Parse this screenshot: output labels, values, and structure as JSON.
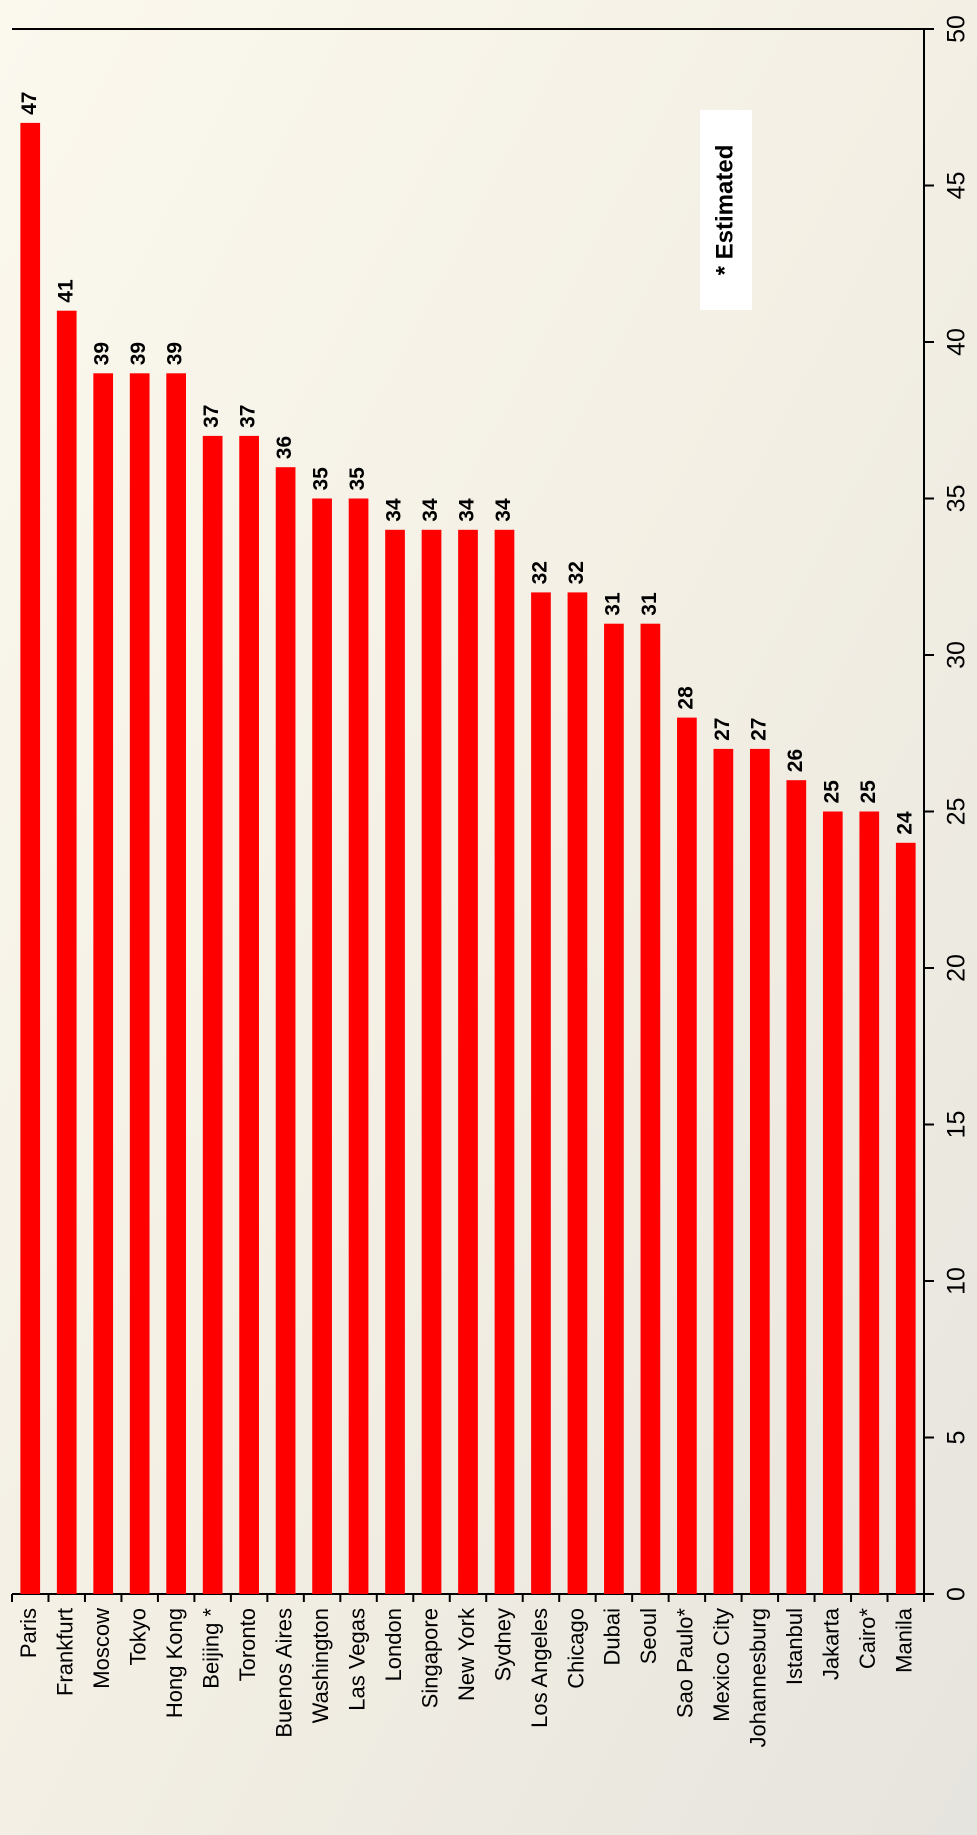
{
  "chart_data": {
    "type": "bar",
    "orientation": "rotated",
    "categories": [
      "Paris",
      "Frankfurt",
      "Moscow",
      "Tokyo",
      "Hong Kong",
      "Beijing *",
      "Toronto",
      "Buenos Aires",
      "Washington",
      "Las Vegas",
      "London",
      "Singapore",
      "New York",
      "Sydney",
      "Los Angeles",
      "Chicago",
      "Dubai",
      "Seoul",
      "Sao Paulo*",
      "Mexico City",
      "Johannesburg",
      "Istanbul",
      "Jakarta",
      "Cairo*",
      "Manila"
    ],
    "values": [
      47,
      41,
      39,
      39,
      39,
      37,
      37,
      36,
      35,
      35,
      34,
      34,
      34,
      34,
      32,
      32,
      31,
      31,
      28,
      27,
      27,
      26,
      25,
      25,
      24
    ],
    "color": "#ff0000",
    "ylim": [
      0,
      50
    ],
    "yticks": [
      0,
      5,
      10,
      15,
      20,
      25,
      30,
      35,
      40,
      45,
      50
    ],
    "annotation": "* Estimated"
  }
}
